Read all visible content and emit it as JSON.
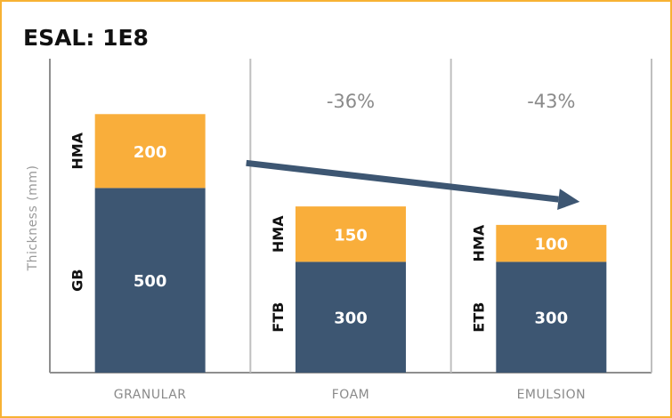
{
  "chart_data": {
    "type": "bar",
    "title": "ESAL: 1E8",
    "ylabel": "Thickness (mm)",
    "xlabel": "",
    "ylim": [
      0,
      850
    ],
    "grid": false,
    "categories": [
      "GRANULAR",
      "FOAM",
      "EMULSION"
    ],
    "series": [
      {
        "name": "base",
        "labels": [
          "GB",
          "FTB",
          "ETB"
        ],
        "values": [
          500,
          300,
          300
        ],
        "color": "#3d5672"
      },
      {
        "name": "HMA",
        "labels": [
          "HMA",
          "HMA",
          "HMA"
        ],
        "values": [
          200,
          150,
          100
        ],
        "color": "#f9ae3b"
      }
    ],
    "annotations": [
      {
        "category": "FOAM",
        "text": "-36%"
      },
      {
        "category": "EMULSION",
        "text": "-43%"
      }
    ],
    "arrow": {
      "from": "GRANULAR",
      "to": "EMULSION",
      "color": "#3d5672"
    },
    "axis_color": "#8f8f8f",
    "divider_color": "#bfbfbf"
  }
}
